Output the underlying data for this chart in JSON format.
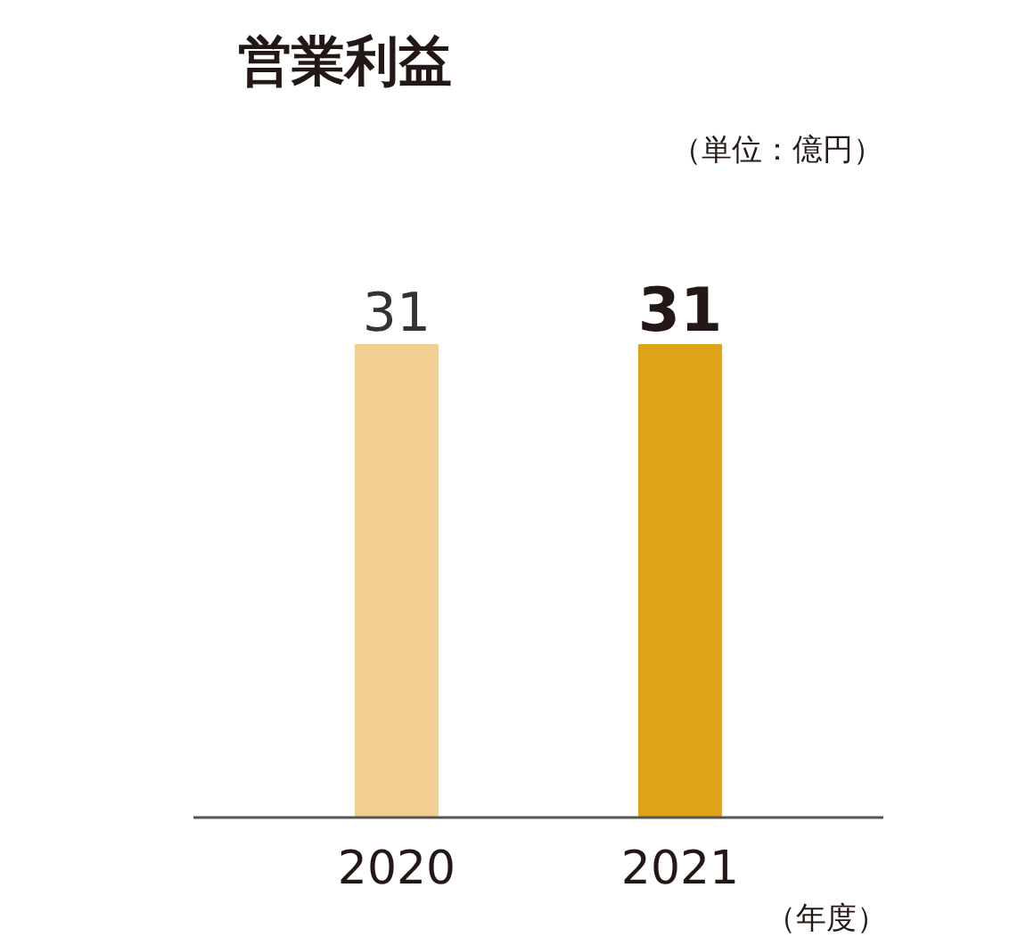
{
  "chart_data": {
    "type": "bar",
    "title": "営業利益",
    "annotations": [
      "（単位：億円）",
      "（年度）"
    ],
    "categories": [
      "2020",
      "2021"
    ],
    "values": [
      31,
      31
    ],
    "colors": [
      "#f0cf90",
      "#e0a418"
    ],
    "tick_labels": "x",
    "data_labels": true,
    "grid": false
  }
}
